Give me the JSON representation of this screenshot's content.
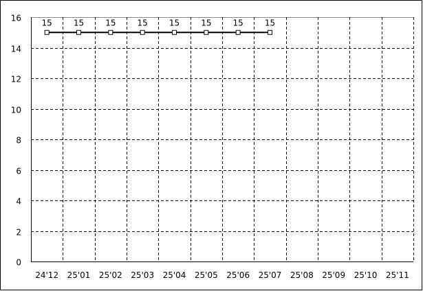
{
  "chart_data": {
    "type": "line",
    "categories": [
      "24'12",
      "25'01",
      "25'02",
      "25'03",
      "25'04",
      "25'05",
      "25'06",
      "25'07",
      "25'08",
      "25'09",
      "25'10",
      "25'11"
    ],
    "series": [
      {
        "values": [
          15,
          15,
          15,
          15,
          15,
          15,
          15,
          15,
          null,
          null,
          null,
          null
        ],
        "color": "#000000",
        "marker": "square",
        "data_labels": true
      }
    ],
    "ylim": [
      0,
      16
    ],
    "yticks": [
      "0",
      "2",
      "4",
      "6",
      "8",
      "10",
      "12",
      "14",
      "16"
    ],
    "grid": true,
    "grid_style": "dashed",
    "title": "",
    "xlabel": "",
    "ylabel": ""
  }
}
